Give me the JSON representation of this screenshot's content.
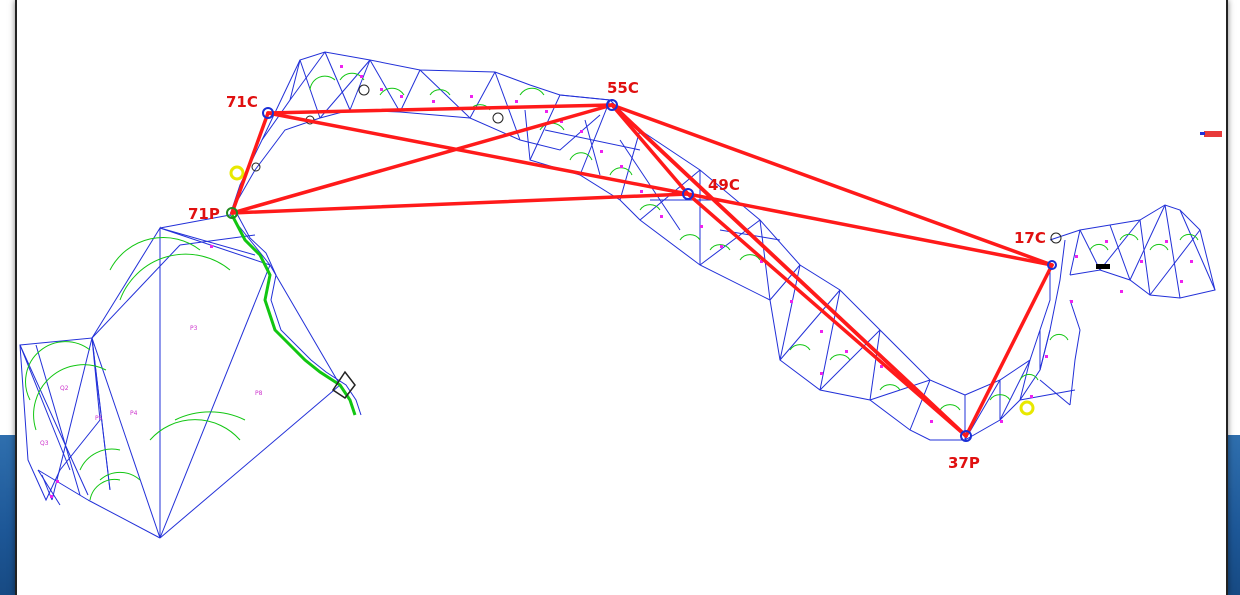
{
  "stations": [
    {
      "id": "71C",
      "label": "71C"
    },
    {
      "id": "55C",
      "label": "55C"
    },
    {
      "id": "49C",
      "label": "49C"
    },
    {
      "id": "71P",
      "label": "71P"
    },
    {
      "id": "17C",
      "label": "17C"
    },
    {
      "id": "37P",
      "label": "37P"
    }
  ],
  "colors": {
    "network": "#ff1a1a",
    "mesh": "#2230d8",
    "arcs": "#12c612",
    "points": "#ee22ee",
    "station_marker": "#1a2fd6",
    "label": "#e01010",
    "background_band": "#1d5797"
  }
}
